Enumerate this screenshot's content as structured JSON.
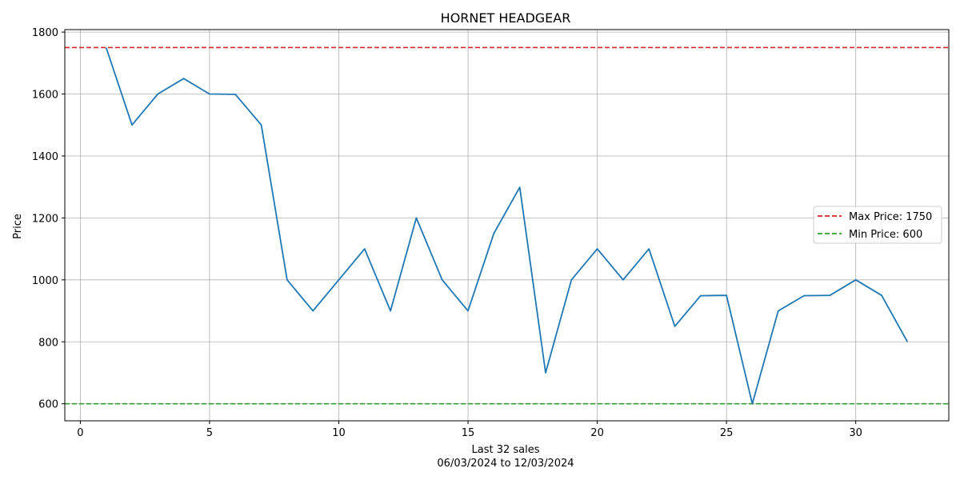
{
  "chart_data": {
    "type": "line",
    "title": "HORNET HEADGEAR",
    "xlabel": "Last 32 sales",
    "xlabel_sub": "06/03/2024 to 12/03/2024",
    "ylabel": "Price",
    "xlim": [
      -0.6,
      33.6
    ],
    "ylim": [
      545,
      1808
    ],
    "x_ticks": [
      0,
      5,
      10,
      15,
      20,
      25,
      30
    ],
    "y_ticks": [
      600,
      800,
      1000,
      1200,
      1400,
      1600,
      1800
    ],
    "grid": true,
    "legend_position": "center-right",
    "series": [
      {
        "color": "#1f77b4",
        "x": [
          1,
          2,
          3,
          4,
          5,
          6,
          7,
          8,
          9,
          10,
          11,
          12,
          13,
          14,
          15,
          16,
          17,
          18,
          19,
          20,
          21,
          22,
          23,
          24,
          25,
          26,
          27,
          28,
          29,
          30,
          31,
          32
        ],
        "values": [
          1750,
          1500,
          1600,
          1650,
          1600,
          1599,
          1500,
          1000,
          900,
          1000,
          1100,
          900,
          1200,
          1000,
          900,
          1150,
          1299,
          700,
          1000,
          1100,
          1000,
          1100,
          850,
          949,
          950,
          600,
          900,
          949,
          950,
          1000,
          950,
          800
        ]
      }
    ],
    "reference_lines": [
      {
        "label": "Max Price: 1750",
        "value": 1750,
        "color": "#d62728"
      },
      {
        "label": "Min Price: 600",
        "value": 600,
        "color": "#2ca02c"
      }
    ]
  }
}
